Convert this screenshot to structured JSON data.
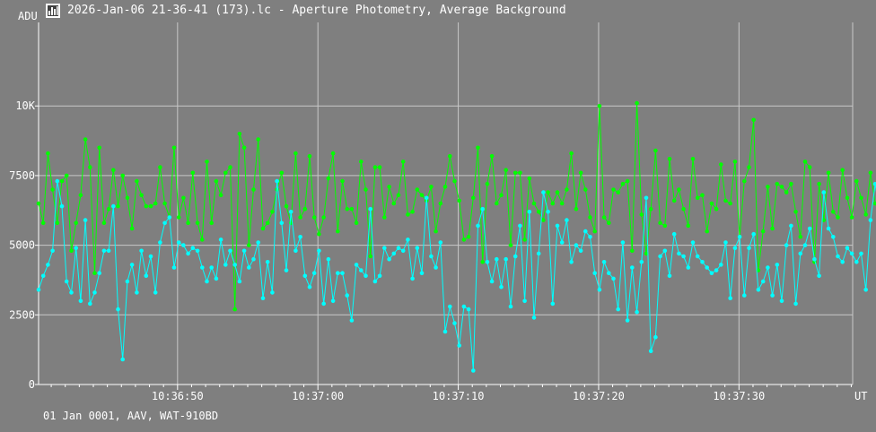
{
  "window": {
    "title": "2026-Jan-06 21-36-41 (173).lc - Aperture Photometry, Average Background",
    "icon": "lightcurve-app-icon"
  },
  "footer": {
    "text": "01 Jan 0001, AAV, WAT-910BD"
  },
  "colors": {
    "background": "#7f7f7f",
    "grid": "#c8c8c8",
    "axis": "#ffffff",
    "series_green": "#00ff00",
    "series_cyan": "#00ffff"
  },
  "chart_data": {
    "type": "line",
    "ylabel": "ADU",
    "xlabel": "UT",
    "ylim": [
      0,
      13000
    ],
    "xlim": [
      "10:36:40.1",
      "10:37:38.1"
    ],
    "y_ticks": [
      0,
      2500,
      5000,
      7500,
      10000
    ],
    "y_tick_labels": [
      "0",
      "2500",
      "5000",
      "7500",
      "10K"
    ],
    "x_tick_labels": [
      "10:36:50",
      "10:37:00",
      "10:37:10",
      "10:37:20",
      "10:37:30"
    ],
    "x_ticks_seconds": [
      50,
      60,
      70,
      80,
      90
    ],
    "time_base": "10:36:00",
    "sample_step_seconds": 0.333,
    "first_sample_seconds": 40.1,
    "grid": true,
    "series": [
      {
        "color": "#00ff00",
        "values": [
          6500,
          5800,
          8300,
          7000,
          5800,
          7300,
          7500,
          4800,
          5800,
          6800,
          8800,
          7800,
          4000,
          8500,
          5800,
          6300,
          7700,
          6400,
          7500,
          6700,
          5600,
          7300,
          6800,
          6400,
          6400,
          6500,
          7800,
          6500,
          6000,
          8500,
          6000,
          6700,
          5800,
          7600,
          5800,
          5200,
          8000,
          5800,
          7300,
          6800,
          7600,
          7800,
          2700,
          9000,
          8500,
          5000,
          7000,
          8800,
          5600,
          5800,
          6200,
          7000,
          7600,
          6400,
          5800,
          8300,
          6000,
          6300,
          8200,
          6000,
          5400,
          6000,
          7400,
          8300,
          5500,
          7300,
          6300,
          6300,
          5800,
          8000,
          7000,
          4600,
          7800,
          7800,
          6000,
          7100,
          6500,
          6800,
          8000,
          6100,
          6200,
          7000,
          6800,
          6600,
          7100,
          5500,
          6500,
          7100,
          8200,
          7300,
          6600,
          5200,
          5300,
          6700,
          8500,
          4400,
          7200,
          8200,
          6500,
          6800,
          7700,
          5000,
          7600,
          7600,
          5200,
          7400,
          6500,
          6200,
          5900,
          6900,
          6500,
          6900,
          6500,
          7000,
          8300,
          6300,
          7600,
          7000,
          6000,
          5500,
          10000,
          6000,
          5800,
          7000,
          6900,
          7200,
          7300,
          4800,
          10100,
          6100,
          4700,
          6300,
          8400,
          5800,
          5700,
          8100,
          6600,
          7000,
          6300,
          5700,
          8100,
          6700,
          6800,
          5500,
          6500,
          6300,
          7900,
          6600,
          6500,
          8000,
          5300,
          7300,
          7800,
          9500,
          4100,
          5500,
          7100,
          5600,
          7200,
          7100,
          6900,
          7200,
          6200,
          5300,
          8000,
          7800,
          4400,
          7200,
          5900,
          7600,
          6200,
          6000,
          7700,
          6700,
          6000,
          7300,
          6700,
          6100,
          7600,
          6500,
          6200,
          6700,
          7300,
          5500,
          5100,
          7600,
          6400,
          6200,
          7100,
          7000,
          8800,
          3800,
          6100,
          6200,
          7800,
          7200,
          6600
        ]
      },
      {
        "color": "#00ffff",
        "values": [
          3400,
          3900,
          4300,
          4800,
          7300,
          6400,
          3700,
          3300,
          4900,
          3000,
          5900,
          2900,
          3300,
          4000,
          4800,
          4800,
          6400,
          2700,
          900,
          3700,
          4300,
          3300,
          4800,
          3900,
          4600,
          3300,
          5100,
          5800,
          6000,
          4200,
          5100,
          5000,
          4700,
          4900,
          4800,
          4200,
          3700,
          4200,
          3800,
          5200,
          4300,
          4800,
          4300,
          3700,
          4800,
          4200,
          4500,
          5100,
          3100,
          4400,
          3300,
          7300,
          5800,
          4100,
          6200,
          4800,
          5300,
          3900,
          3500,
          4000,
          4800,
          2900,
          4500,
          3000,
          4000,
          4000,
          3200,
          2300,
          4300,
          4100,
          3900,
          6300,
          3700,
          3900,
          4900,
          4500,
          4700,
          4900,
          4800,
          5200,
          3800,
          4900,
          4000,
          6700,
          4600,
          4200,
          5100,
          1900,
          2800,
          2200,
          1400,
          2800,
          2700,
          500,
          5700,
          6300,
          4400,
          3700,
          4500,
          3500,
          4500,
          2800,
          4600,
          5700,
          3000,
          6200,
          2400,
          4700,
          6900,
          6200,
          2900,
          5700,
          5100,
          5900,
          4400,
          5000,
          4800,
          5500,
          5300,
          4000,
          3400,
          4400,
          4000,
          3800,
          2700,
          5100,
          2300,
          4200,
          2600,
          4400,
          6700,
          1200,
          1700,
          4600,
          4800,
          3900,
          5400,
          4700,
          4600,
          4200,
          5100,
          4600,
          4400,
          4200,
          4000,
          4100,
          4300,
          5100,
          3100,
          4900,
          5300,
          3200,
          4900,
          5400,
          3400,
          3700,
          4200,
          3200,
          4300,
          3000,
          5000,
          5700,
          2900,
          4700,
          5000,
          5600,
          4500,
          3900,
          6900,
          5600,
          5300,
          4600,
          4400,
          4900,
          4700,
          4400,
          4700,
          3400,
          5900,
          7200,
          6100,
          4300,
          3900,
          6600,
          4200,
          4200,
          4000
        ]
      }
    ]
  }
}
